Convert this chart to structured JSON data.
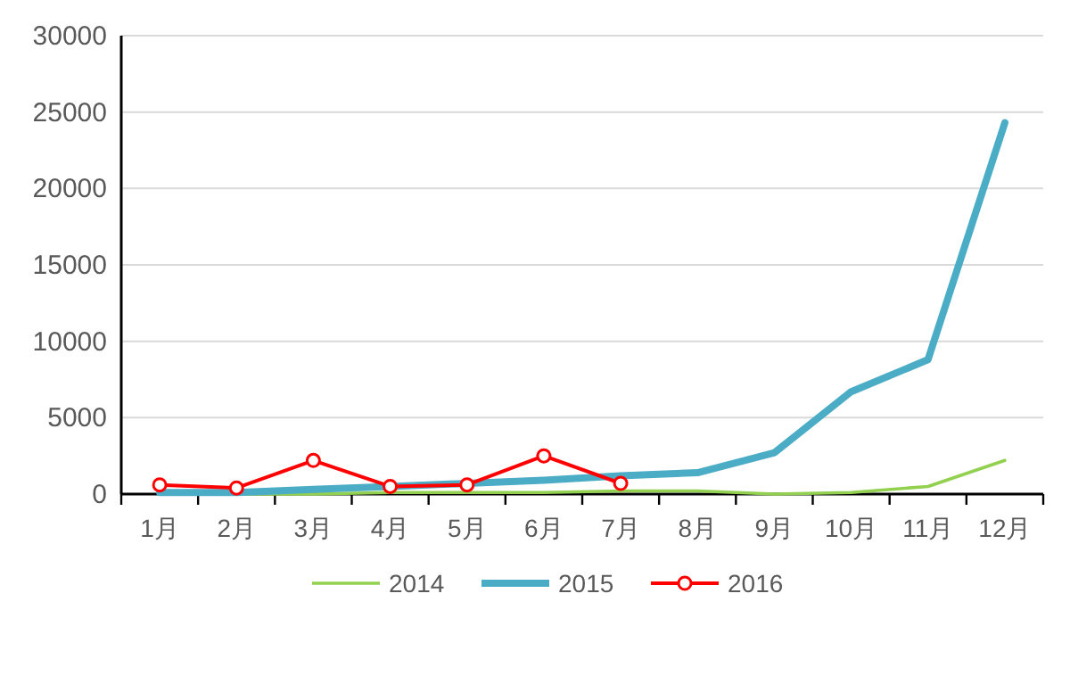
{
  "chart_data": {
    "type": "line",
    "categories": [
      "1月",
      "2月",
      "3月",
      "4月",
      "5月",
      "6月",
      "7月",
      "8月",
      "9月",
      "10月",
      "11月",
      "12月"
    ],
    "series": [
      {
        "name": "2014",
        "color": "#92d050",
        "marker": "none",
        "values": [
          100,
          0,
          0,
          100,
          100,
          100,
          200,
          200,
          0,
          100,
          500,
          2200
        ]
      },
      {
        "name": "2015",
        "color": "#4bacc6",
        "marker": "none",
        "values": [
          100,
          100,
          300,
          500,
          700,
          900,
          1200,
          1400,
          2700,
          6700,
          8800,
          24300
        ]
      },
      {
        "name": "2016",
        "color": "#ff0000",
        "marker": "circle",
        "values": [
          600,
          400,
          2200,
          500,
          600,
          2500,
          700,
          null,
          null,
          null,
          null,
          null
        ]
      }
    ],
    "ylim": [
      0,
      30000
    ],
    "yticks": [
      0,
      5000,
      10000,
      15000,
      20000,
      25000,
      30000
    ],
    "grid": "y",
    "legend": "bottom",
    "line_style": "solid"
  }
}
